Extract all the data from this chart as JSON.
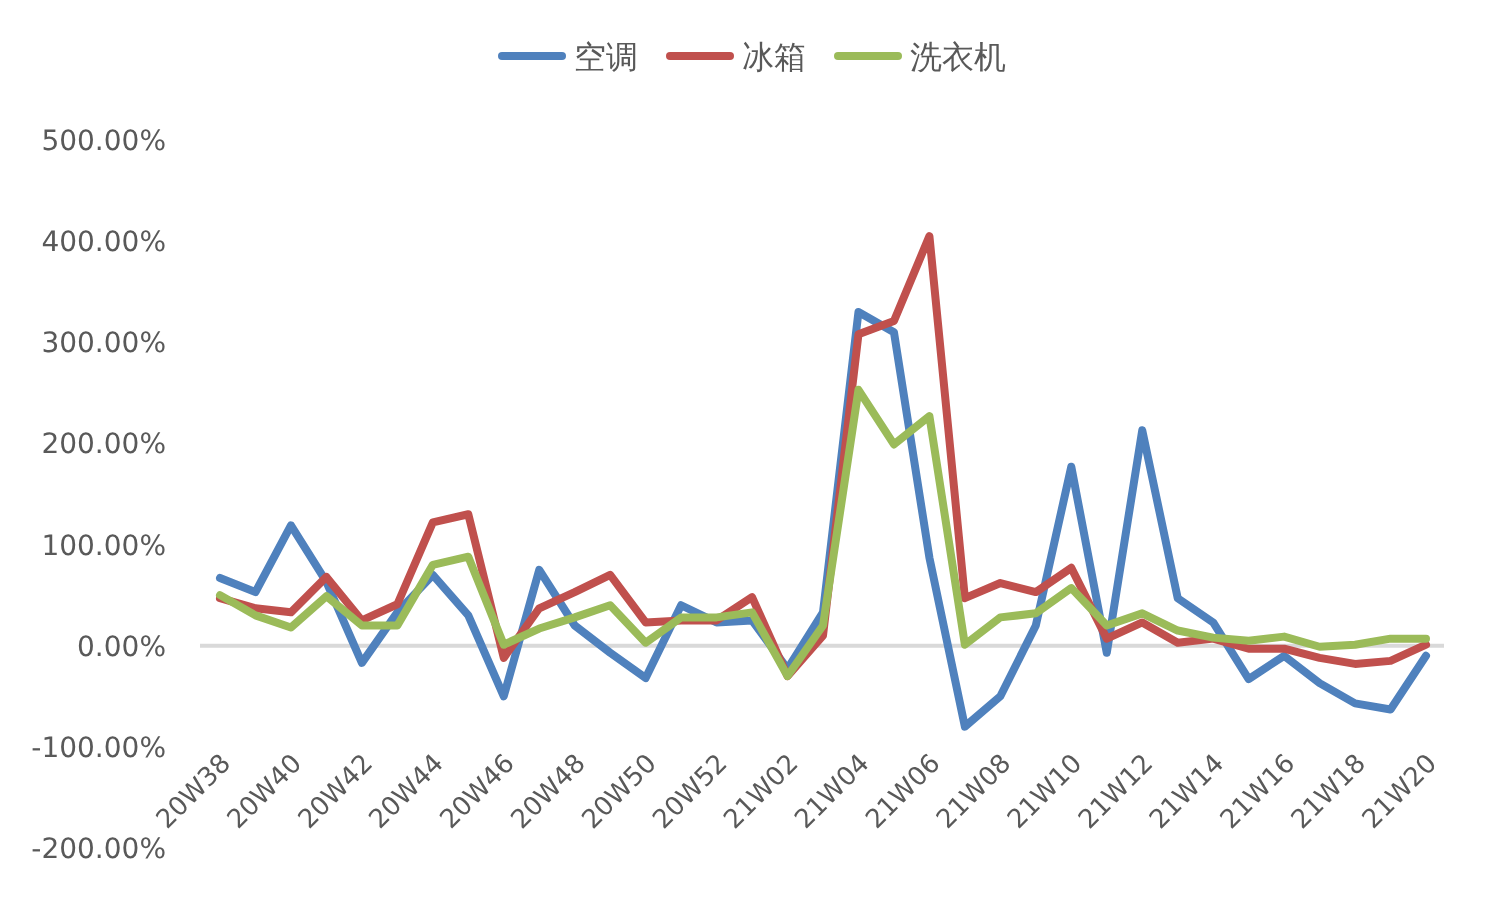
{
  "chart_data": {
    "type": "line",
    "categories": [
      "20W38",
      null,
      "20W40",
      null,
      "20W42",
      null,
      "20W44",
      null,
      "20W46",
      null,
      "20W48",
      null,
      "20W50",
      null,
      "20W52",
      null,
      "21W02",
      null,
      "21W04",
      null,
      "21W06",
      null,
      "21W08",
      null,
      "21W10",
      null,
      "21W12",
      null,
      "21W14",
      null,
      "21W16",
      null,
      "21W18",
      null,
      "21W20"
    ],
    "series": [
      {
        "name": "空调",
        "color": "#4f81bd",
        "values": [
          67,
          53,
          119,
          63,
          -17,
          33,
          70,
          30,
          -50,
          75,
          20,
          -7,
          -32,
          40,
          23,
          25,
          -23,
          33,
          330,
          310,
          87,
          -80,
          -50,
          20,
          177,
          -7,
          213,
          47,
          23,
          -33,
          -10,
          -37,
          -57,
          -63,
          -10
        ]
      },
      {
        "name": "冰箱",
        "color": "#c0504d",
        "values": [
          47,
          37,
          33,
          68,
          25,
          41,
          122,
          130,
          -12,
          37,
          53,
          70,
          23,
          25,
          25,
          48,
          -30,
          10,
          308,
          321,
          405,
          47,
          62,
          53,
          77,
          7,
          23,
          3,
          7,
          -3,
          -3,
          -12,
          -18,
          -15,
          1
        ]
      },
      {
        "name": "洗衣机",
        "color": "#9bbb59",
        "values": [
          50,
          30,
          18,
          49,
          20,
          20,
          80,
          88,
          1,
          17,
          28,
          40,
          3,
          28,
          28,
          33,
          -30,
          20,
          253,
          199,
          227,
          1,
          28,
          32,
          57,
          20,
          32,
          15,
          8,
          5,
          9,
          -1,
          1,
          7,
          7
        ]
      }
    ],
    "ylim": [
      -200,
      500
    ],
    "yticks": [
      {
        "value": -200,
        "label": "-200.00%"
      },
      {
        "value": -100,
        "label": "-100.00%"
      },
      {
        "value": 0,
        "label": "0.00%"
      },
      {
        "value": 100,
        "label": "100.00%"
      },
      {
        "value": 200,
        "label": "200.00%"
      },
      {
        "value": 300,
        "label": "300.00%"
      },
      {
        "value": 400,
        "label": "400.00%"
      },
      {
        "value": 500,
        "label": "500.00%"
      }
    ],
    "ref_lines": [
      {
        "axis": "y",
        "value": 0,
        "color": "#d9d9d9"
      }
    ],
    "legend": "top",
    "grid": false,
    "marker": "none",
    "line_style": "solid"
  }
}
